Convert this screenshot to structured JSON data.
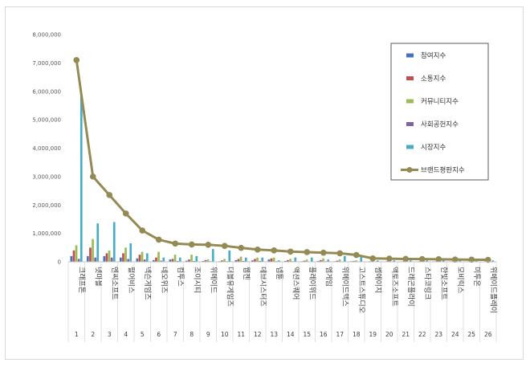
{
  "chart_data": {
    "type": "bar",
    "title": "",
    "xlabel": "",
    "ylabel": "",
    "ylim": [
      0,
      8000000
    ],
    "y_ticks": [
      "0",
      "1,000,000",
      "2,000,000",
      "3,000,000",
      "4,000,000",
      "5,000,000",
      "6,000,000",
      "7,000,000",
      "8,000,000"
    ],
    "grid": false,
    "legend_position": "top-right",
    "categories": [
      "크래프톤",
      "넷마블",
      "엔씨소프트",
      "펄어비스",
      "넥슨게임즈",
      "네오위즈",
      "컴투스",
      "조이시티",
      "위메이드",
      "더블유게임즈",
      "웹젠",
      "데브시스터즈",
      "넵튠",
      "액션스퀘어",
      "플레이위드",
      "엠게임",
      "위메이드맥스",
      "고스트스튜디오",
      "썸에이지",
      "액토즈소프트",
      "드래곤플라이",
      "스타코링크",
      "한빛소프트",
      "모비릭스",
      "미투온",
      "위메이드플레이"
    ],
    "ranks": [
      "1",
      "2",
      "3",
      "4",
      "5",
      "6",
      "7",
      "8",
      "9",
      "10",
      "11",
      "12",
      "13",
      "14",
      "15",
      "16",
      "17",
      "18",
      "19",
      "20",
      "21",
      "22",
      "23",
      "24",
      "25",
      "26"
    ],
    "series": [
      {
        "name": "참여지수",
        "kind": "bar",
        "color": "#4472c4",
        "values": [
          200000,
          200000,
          200000,
          150000,
          120000,
          60000,
          80000,
          40000,
          30000,
          20000,
          60000,
          50000,
          80000,
          30000,
          20000,
          30000,
          20000,
          20000,
          10000,
          10000,
          10000,
          10000,
          10000,
          10000,
          10000,
          10000
        ]
      },
      {
        "name": "소통지수",
        "kind": "bar",
        "color": "#c0504d",
        "values": [
          400000,
          500000,
          300000,
          300000,
          250000,
          150000,
          100000,
          80000,
          60000,
          50000,
          100000,
          100000,
          120000,
          60000,
          40000,
          60000,
          40000,
          30000,
          20000,
          20000,
          20000,
          20000,
          20000,
          20000,
          20000,
          20000
        ]
      },
      {
        "name": "커뮤니티지수",
        "kind": "bar",
        "color": "#9bbb59",
        "values": [
          580000,
          800000,
          400000,
          500000,
          350000,
          350000,
          250000,
          250000,
          80000,
          100000,
          180000,
          150000,
          150000,
          100000,
          80000,
          120000,
          80000,
          50000,
          30000,
          30000,
          30000,
          30000,
          30000,
          30000,
          30000,
          30000
        ]
      },
      {
        "name": "사회공헌지수",
        "kind": "bar",
        "color": "#8064a2",
        "values": [
          100000,
          150000,
          150000,
          100000,
          80000,
          40000,
          30000,
          30000,
          20000,
          20000,
          30000,
          30000,
          20000,
          20000,
          10000,
          20000,
          10000,
          10000,
          10000,
          10000,
          10000,
          10000,
          10000,
          10000,
          10000,
          10000
        ]
      },
      {
        "name": "시장지수",
        "kind": "bar",
        "color": "#4bacc6",
        "values": [
          5900000,
          1350000,
          1400000,
          650000,
          300000,
          150000,
          150000,
          200000,
          450000,
          400000,
          150000,
          150000,
          50000,
          150000,
          150000,
          80000,
          200000,
          200000,
          50000,
          50000,
          50000,
          50000,
          50000,
          50000,
          50000,
          50000
        ]
      },
      {
        "name": "브랜드평판지수",
        "kind": "line",
        "color": "#948a54",
        "values": [
          7100000,
          3000000,
          2350000,
          1700000,
          1100000,
          780000,
          640000,
          610000,
          600000,
          560000,
          490000,
          430000,
          400000,
          360000,
          340000,
          320000,
          300000,
          240000,
          120000,
          110000,
          100000,
          95000,
          90000,
          80000,
          75000,
          70000
        ]
      }
    ]
  }
}
